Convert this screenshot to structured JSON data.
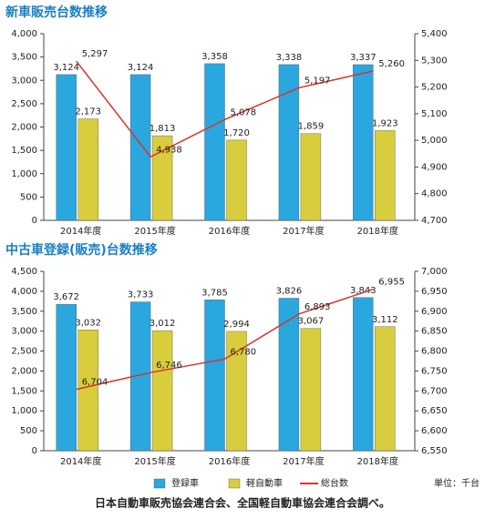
{
  "chart_data": [
    {
      "type": "bar-line",
      "title": "新車販売台数推移",
      "categories": [
        "2014年度",
        "2015年度",
        "2016年度",
        "2017年度",
        "2018年度"
      ],
      "series": [
        {
          "color": "#2aa7df",
          "values": [
            3124,
            3124,
            3358,
            3338,
            3337
          ],
          "value_labels": [
            "3,124",
            "3,124",
            "3,358",
            "3,338",
            "3,337"
          ]
        },
        {
          "color": "#d8cd3c",
          "values": [
            2173,
            1813,
            1720,
            1859,
            1923
          ],
          "value_labels": [
            "2,173",
            "1,813",
            "1,720",
            "1,859",
            "1,923"
          ]
        },
        {
          "color": "#d7352b",
          "axis": "y2",
          "values": [
            5297,
            4938,
            5078,
            5197,
            5260
          ],
          "value_labels": [
            "5,297",
            "4,938",
            "5,078",
            "5,197",
            "5,260"
          ]
        }
      ],
      "ylim": [
        0,
        4000
      ],
      "yticks": [
        0,
        500,
        {
          "value": 1000,
          "label": "1,000"
        },
        {
          "value": 1500,
          "label": "1,500"
        },
        {
          "value": 2000,
          "label": "2,000"
        },
        {
          "value": 2500,
          "label": "2,500"
        },
        {
          "value": 3000,
          "label": "3,000"
        },
        {
          "value": 3500,
          "label": "3,500"
        },
        {
          "value": 4000,
          "label": "4,000"
        }
      ],
      "y2lim": [
        4700,
        5400
      ],
      "y2ticks": [
        {
          "value": 4700,
          "label": "4,700"
        },
        {
          "value": 4800,
          "label": "4,800"
        },
        {
          "value": 4900,
          "label": "4,900"
        },
        {
          "value": 5000,
          "label": "5,000"
        },
        {
          "value": 5100,
          "label": "5,100"
        },
        {
          "value": 5200,
          "label": "5,200"
        },
        {
          "value": 5300,
          "label": "5,300"
        },
        {
          "value": 5400,
          "label": "5,400"
        }
      ],
      "grid": false
    },
    {
      "type": "bar-line",
      "title": "中古車登録(販売)台数推移",
      "categories": [
        "2014年度",
        "2015年度",
        "2016年度",
        "2017年度",
        "2018年度"
      ],
      "series": [
        {
          "name": "登録車",
          "color": "#2aa7df",
          "values": [
            3672,
            3733,
            3785,
            3826,
            3843
          ],
          "value_labels": [
            "3,672",
            "3,733",
            "3,785",
            "3,826",
            "3,843"
          ]
        },
        {
          "name": "軽自動車",
          "color": "#d8cd3c",
          "values": [
            3032,
            3012,
            2994,
            3067,
            3112
          ],
          "value_labels": [
            "3,032",
            "3,012",
            "2,994",
            "3,067",
            "3,112"
          ]
        },
        {
          "name": "総台数",
          "color": "#d7352b",
          "axis": "y2",
          "values": [
            6704,
            6746,
            6780,
            6893,
            6955
          ],
          "value_labels": [
            "6,704",
            "6,746",
            "6,780",
            "6,893",
            "6,955"
          ]
        }
      ],
      "ylim": [
        0,
        4500
      ],
      "yticks": [
        0,
        500,
        {
          "value": 1000,
          "label": "1,000"
        },
        {
          "value": 1500,
          "label": "1,500"
        },
        {
          "value": 2000,
          "label": "2,000"
        },
        {
          "value": 2500,
          "label": "2,500"
        },
        {
          "value": 3000,
          "label": "3,000"
        },
        {
          "value": 3500,
          "label": "3,500"
        },
        {
          "value": 4000,
          "label": "4,000"
        },
        {
          "value": 4500,
          "label": "4,500"
        }
      ],
      "y2lim": [
        6550,
        7000
      ],
      "y2ticks": [
        {
          "value": 6550,
          "label": "6,550"
        },
        {
          "value": 6600,
          "label": "6,600"
        },
        {
          "value": 6650,
          "label": "6,650"
        },
        {
          "value": 6700,
          "label": "6,700"
        },
        {
          "value": 6750,
          "label": "6,750"
        },
        {
          "value": 6800,
          "label": "6,800"
        },
        {
          "value": 6850,
          "label": "6,850"
        },
        {
          "value": 6900,
          "label": "6,900"
        },
        {
          "value": 6950,
          "label": "6,950"
        },
        {
          "value": 7000,
          "label": "7,000"
        }
      ],
      "grid": false,
      "unit_note": "単位：千台"
    }
  ],
  "source": "日本自動車販売協会連合会、全国軽自動車協会連合会調べ。"
}
